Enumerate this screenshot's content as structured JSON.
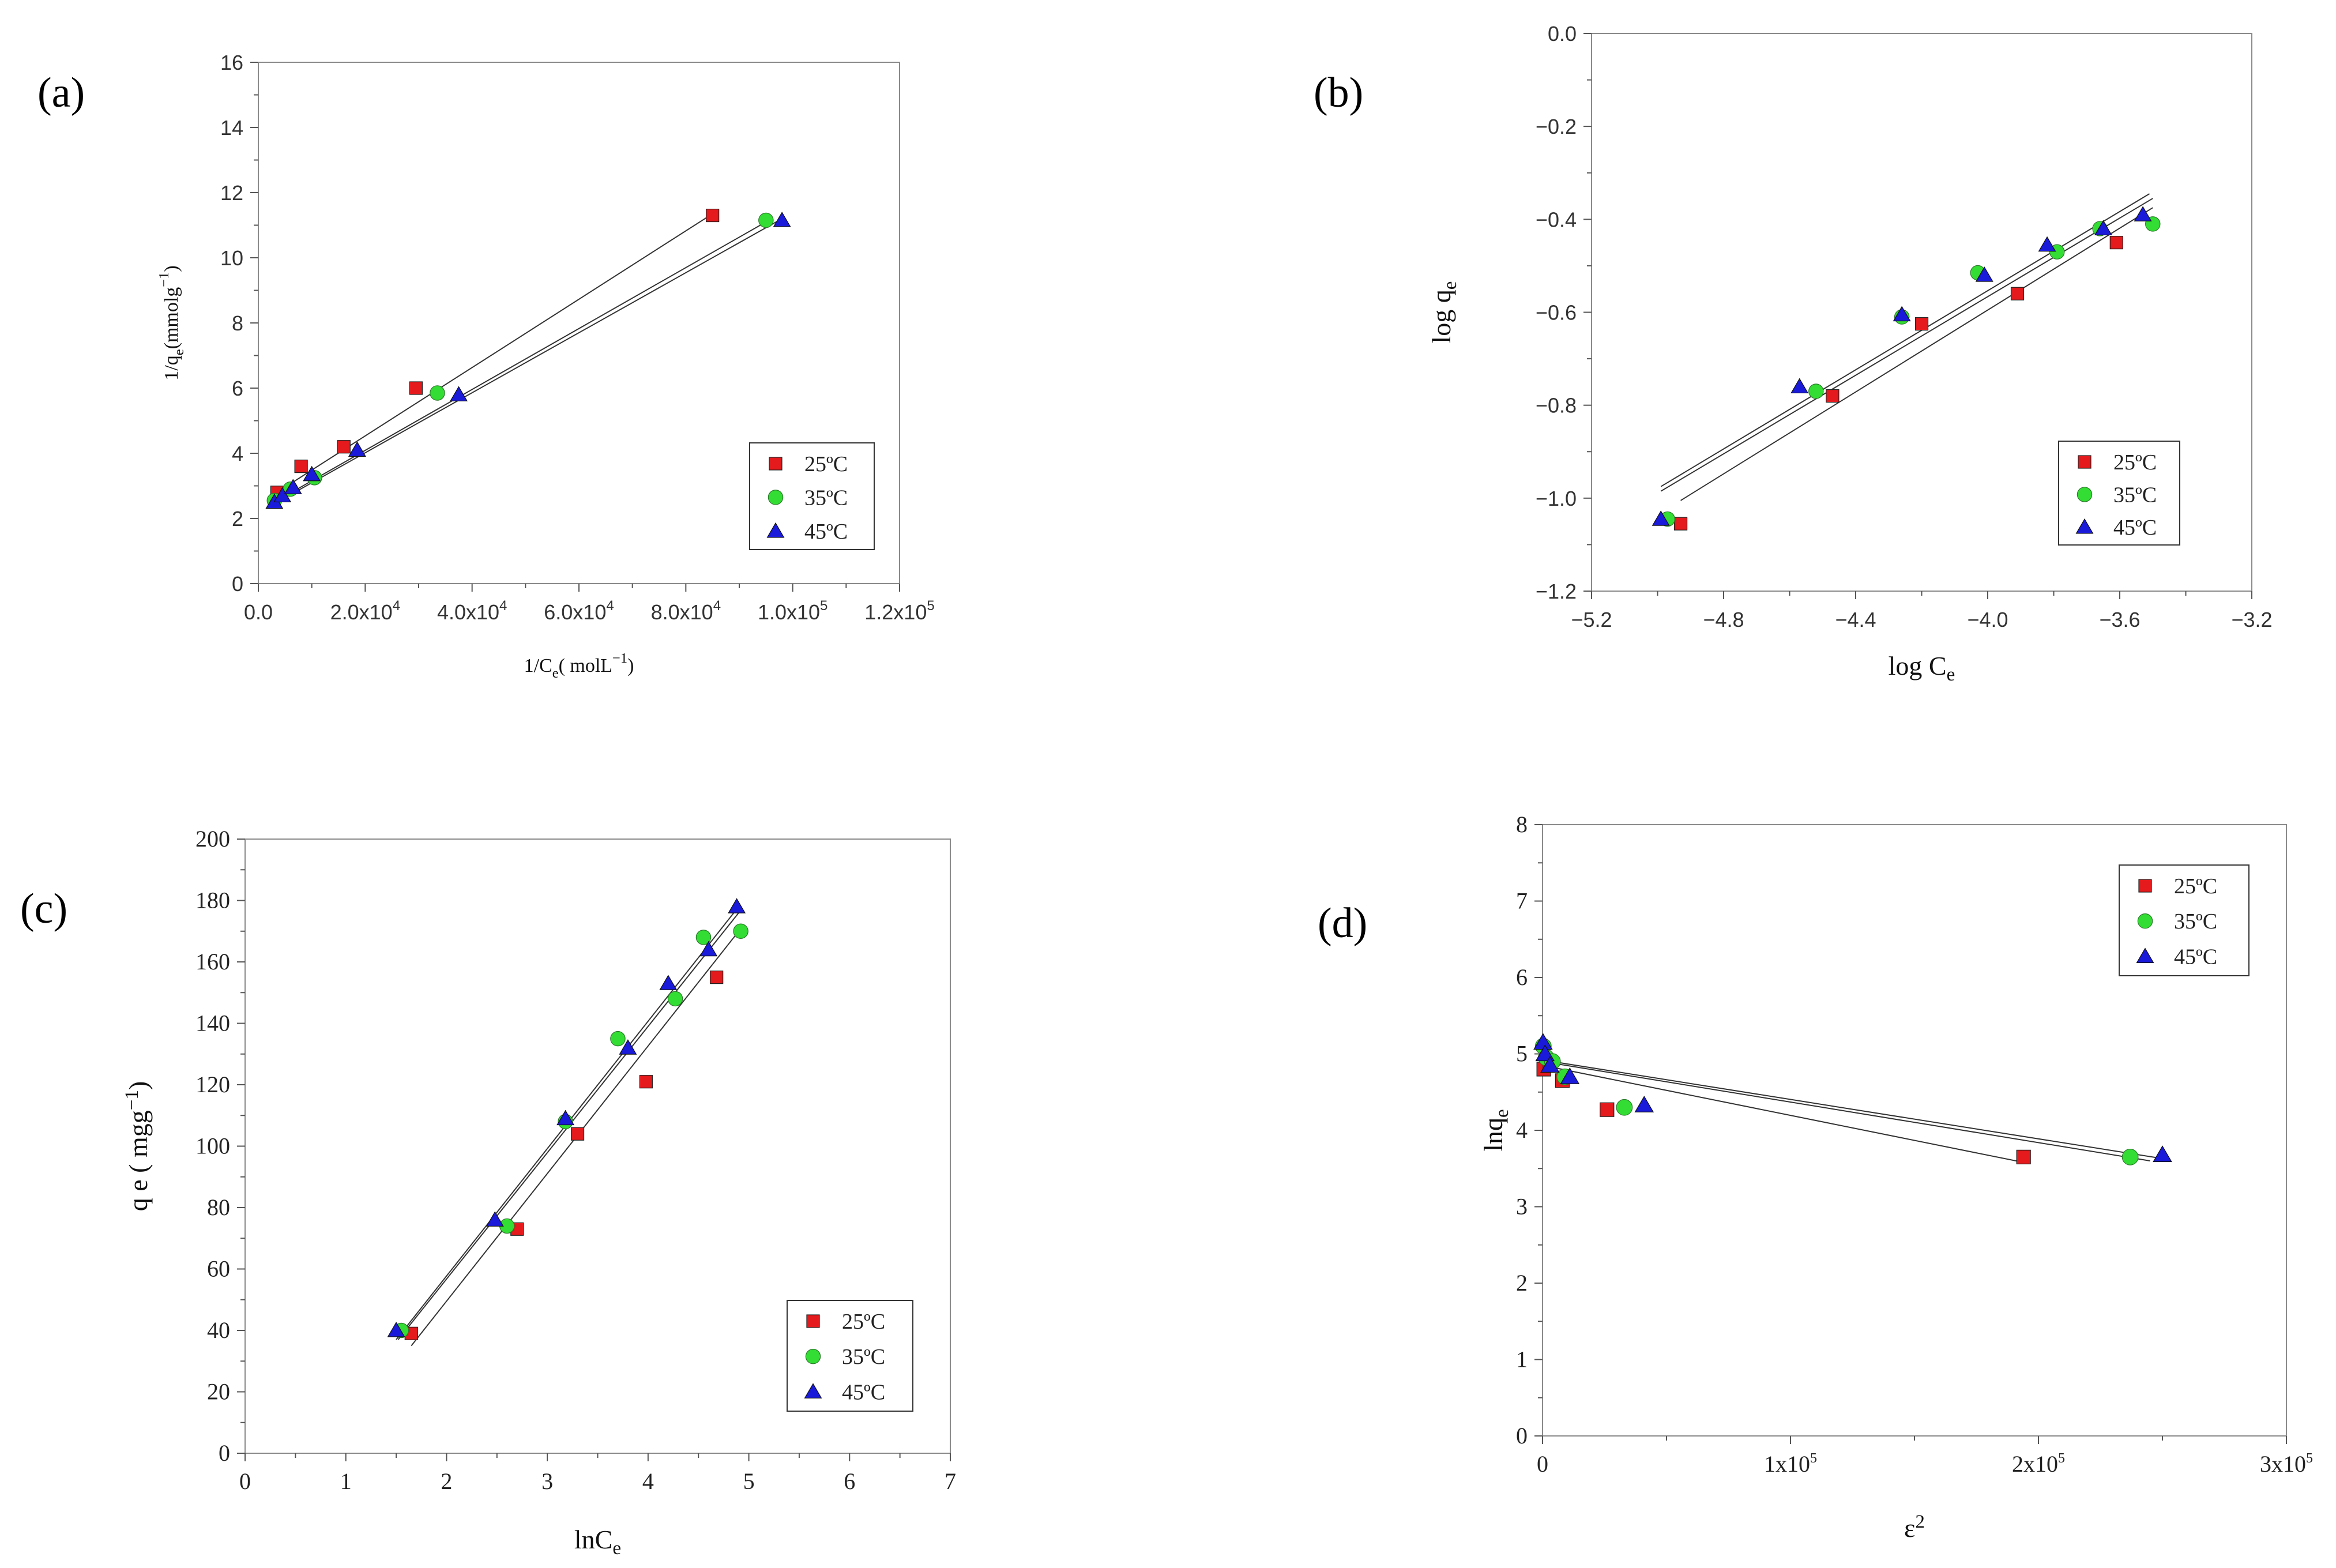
{
  "colors": {
    "25C": "#e41a1c",
    "35C": "#33dd33",
    "45C": "#1a1adb",
    "fitline": "#333333"
  },
  "chart_data": [
    {
      "id": "a",
      "panel_label": "(a)",
      "type": "scatter",
      "title": "",
      "xlabel": "1/C",
      "xlabel_sub": "e",
      "xlabel_unit": "( molL",
      "xlabel_sup": "−1",
      "xlabel_close": ")",
      "ylabel": "1/q",
      "ylabel_sub": "e",
      "ylabel_unit": "(mmolg",
      "ylabel_sup": "−1",
      "ylabel_close": ")",
      "xlim": [
        0,
        120000
      ],
      "ylim": [
        0,
        16
      ],
      "xticks": [
        {
          "value": 0,
          "mant": "0.0",
          "exp": ""
        },
        {
          "value": 20000,
          "mant": "2.0x10",
          "exp": "4"
        },
        {
          "value": 40000,
          "mant": "4.0x10",
          "exp": "4"
        },
        {
          "value": 60000,
          "mant": "6.0x10",
          "exp": "4"
        },
        {
          "value": 80000,
          "mant": "8.0x10",
          "exp": "4"
        },
        {
          "value": 100000,
          "mant": "1.0x10",
          "exp": "5"
        },
        {
          "value": 120000,
          "mant": "1.2x10",
          "exp": "5"
        }
      ],
      "yticks": [
        "0",
        "2",
        "4",
        "6",
        "8",
        "10",
        "12",
        "14",
        "16"
      ],
      "legend_position": "bottom-right",
      "series": [
        {
          "name": "25ºC",
          "marker": "square",
          "color": "#e41a1c",
          "x": [
            3500,
            8000,
            16000,
            29500,
            85000
          ],
          "y": [
            2.8,
            3.6,
            4.2,
            6.0,
            11.3
          ]
        },
        {
          "name": "35ºC",
          "marker": "circle",
          "color": "#33dd33",
          "x": [
            3000,
            6000,
            10500,
            33500,
            95000
          ],
          "y": [
            2.55,
            2.9,
            3.25,
            5.85,
            11.15
          ]
        },
        {
          "name": "45ºC",
          "marker": "triangle",
          "color": "#1a1adb",
          "x": [
            3000,
            4500,
            6500,
            10000,
            18500,
            37500,
            98000
          ],
          "y": [
            2.5,
            2.7,
            2.95,
            3.35,
            4.1,
            5.8,
            11.15
          ]
        }
      ],
      "fits": [
        {
          "x": [
            3000,
            85000
          ],
          "y": [
            2.75,
            11.35
          ]
        },
        {
          "x": [
            3000,
            95000
          ],
          "y": [
            2.5,
            11.1
          ]
        },
        {
          "x": [
            3000,
            98000
          ],
          "y": [
            2.45,
            11.2
          ]
        }
      ]
    },
    {
      "id": "b",
      "panel_label": "(b)",
      "type": "scatter",
      "title": "",
      "xlabel": "log C",
      "xlabel_sub": "e",
      "ylabel": "log q",
      "ylabel_sub": "e",
      "xlim": [
        -5.2,
        -3.2
      ],
      "ylim": [
        -1.2,
        0.0
      ],
      "xticks": [
        "−5.2",
        "−4.8",
        "−4.4",
        "−4.0",
        "−3.6",
        "−3.2"
      ],
      "yticks": [
        "−1.2",
        "−1.0",
        "−0.8",
        "−0.6",
        "−0.4",
        "−0.2",
        "0.0"
      ],
      "legend_position": "bottom-right",
      "series": [
        {
          "name": "25ºC",
          "marker": "square",
          "color": "#e41a1c",
          "x": [
            -4.93,
            -4.47,
            -4.2,
            -3.91,
            -3.61
          ],
          "y": [
            -1.055,
            -0.78,
            -0.625,
            -0.56,
            -0.45
          ]
        },
        {
          "name": "35ºC",
          "marker": "circle",
          "color": "#33dd33",
          "x": [
            -4.97,
            -4.52,
            -4.26,
            -4.03,
            -3.79,
            -3.66,
            -3.5
          ],
          "y": [
            -1.045,
            -0.77,
            -0.61,
            -0.515,
            -0.47,
            -0.42,
            -0.41
          ]
        },
        {
          "name": "45ºC",
          "marker": "triangle",
          "color": "#1a1adb",
          "x": [
            -4.99,
            -4.57,
            -4.26,
            -4.01,
            -3.82,
            -3.65,
            -3.53
          ],
          "y": [
            -1.045,
            -0.76,
            -0.605,
            -0.52,
            -0.455,
            -0.42,
            -0.39
          ]
        }
      ],
      "fits": [
        {
          "x": [
            -4.93,
            -3.5
          ],
          "y": [
            -1.005,
            -0.375
          ]
        },
        {
          "x": [
            -4.99,
            -3.5
          ],
          "y": [
            -0.985,
            -0.355
          ]
        },
        {
          "x": [
            -4.99,
            -3.51
          ],
          "y": [
            -0.975,
            -0.345
          ]
        }
      ]
    },
    {
      "id": "c",
      "panel_label": "(c)",
      "type": "scatter",
      "title": "",
      "xlabel": "lnC",
      "xlabel_sub": "e",
      "ylabel": "q e ( mgg",
      "ylabel_sup": "−1",
      "ylabel_close": ")",
      "xlim": [
        0,
        7
      ],
      "ylim": [
        0,
        200
      ],
      "xticks": [
        "0",
        "1",
        "2",
        "3",
        "4",
        "5",
        "6",
        "7"
      ],
      "yticks": [
        "0",
        "20",
        "40",
        "60",
        "80",
        "100",
        "120",
        "140",
        "160",
        "180",
        "200"
      ],
      "legend_position": "bottom-right",
      "series": [
        {
          "name": "25ºC",
          "marker": "square",
          "color": "#e41a1c",
          "x": [
            1.65,
            2.7,
            3.3,
            3.98,
            4.68
          ],
          "y": [
            39,
            73,
            104,
            121,
            155
          ]
        },
        {
          "name": "35ºC",
          "marker": "circle",
          "color": "#33dd33",
          "x": [
            1.55,
            2.6,
            3.18,
            3.7,
            4.27,
            4.55,
            4.92
          ],
          "y": [
            40,
            74,
            108,
            135,
            148,
            168,
            170
          ]
        },
        {
          "name": "45ºC",
          "marker": "triangle",
          "color": "#1a1adb",
          "x": [
            1.5,
            2.48,
            3.18,
            3.8,
            4.2,
            4.6,
            4.88
          ],
          "y": [
            40,
            76,
            109,
            132,
            153,
            164,
            178
          ]
        }
      ],
      "fits": [
        {
          "x": [
            1.65,
            4.9
          ],
          "y": [
            35,
            170
          ]
        },
        {
          "x": [
            1.52,
            4.9
          ],
          "y": [
            37,
            176
          ]
        },
        {
          "x": [
            1.5,
            4.9
          ],
          "y": [
            37,
            178
          ]
        }
      ]
    },
    {
      "id": "d",
      "panel_label": "(d)",
      "type": "scatter",
      "title": "",
      "xlabel": "ε",
      "xlabel_sup": "2",
      "ylabel": "lnq",
      "ylabel_sub": "e",
      "xlim": [
        0,
        300000
      ],
      "ylim": [
        0,
        8
      ],
      "xticks": [
        {
          "value": 0,
          "mant": "0",
          "exp": ""
        },
        {
          "value": 100000,
          "mant": "1x10",
          "exp": "5"
        },
        {
          "value": 200000,
          "mant": "2x10",
          "exp": "5"
        },
        {
          "value": 300000,
          "mant": "3x10",
          "exp": "5"
        }
      ],
      "yticks": [
        "0",
        "1",
        "2",
        "3",
        "4",
        "5",
        "6",
        "7",
        "8"
      ],
      "legend_position": "top-right",
      "series": [
        {
          "name": "25ºC",
          "marker": "square",
          "color": "#e41a1c",
          "x": [
            500,
            3000,
            8000,
            26000,
            194000
          ],
          "y": [
            4.8,
            4.85,
            4.65,
            4.27,
            3.65
          ]
        },
        {
          "name": "35ºC",
          "marker": "circle",
          "color": "#33dd33",
          "x": [
            300,
            1500,
            4000,
            9000,
            33000,
            237000
          ],
          "y": [
            5.1,
            4.95,
            4.9,
            4.7,
            4.3,
            3.65
          ]
        },
        {
          "name": "45ºC",
          "marker": "triangle",
          "color": "#1a1adb",
          "x": [
            200,
            1000,
            3000,
            11000,
            41000,
            250000
          ],
          "y": [
            5.15,
            5.0,
            4.85,
            4.7,
            4.33,
            3.68
          ]
        }
      ],
      "fits": [
        {
          "x": [
            0,
            194000
          ],
          "y": [
            4.85,
            3.58
          ]
        },
        {
          "x": [
            0,
            245000
          ],
          "y": [
            4.9,
            3.6
          ]
        },
        {
          "x": [
            0,
            252000
          ],
          "y": [
            4.92,
            3.62
          ]
        }
      ]
    }
  ]
}
